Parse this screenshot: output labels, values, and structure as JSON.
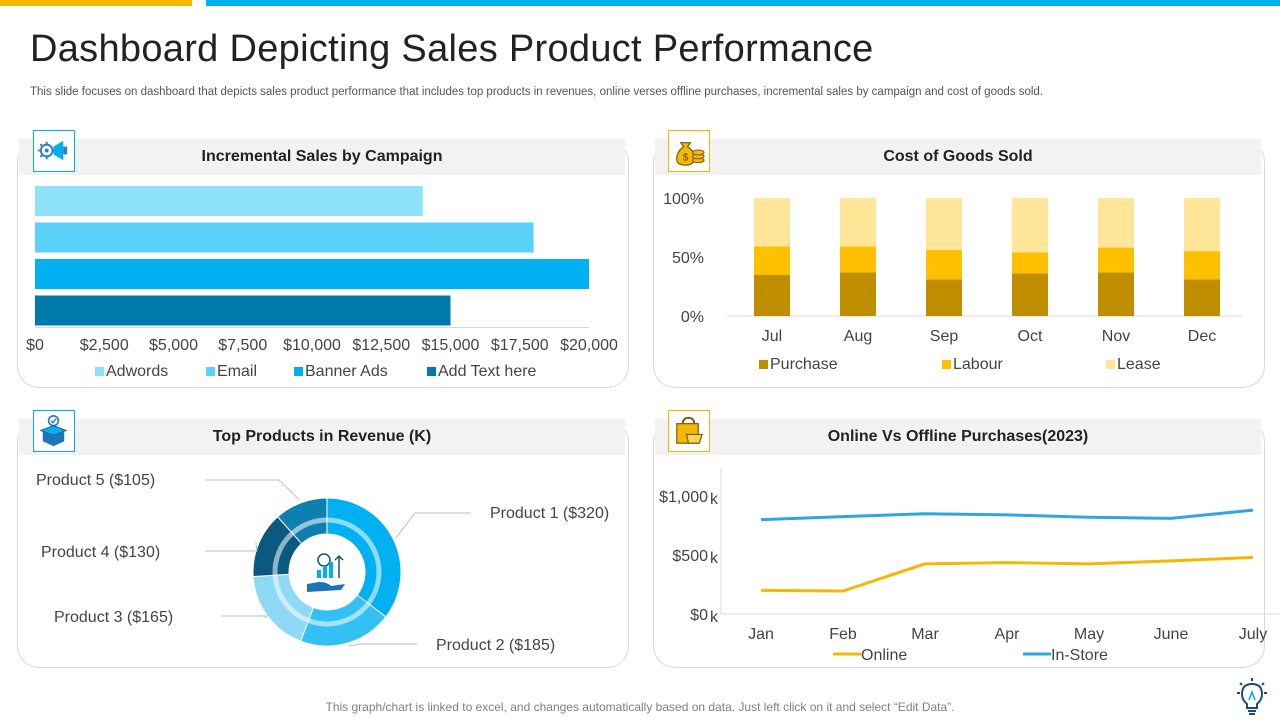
{
  "page": {
    "title": "Dashboard Depicting Sales Product Performance",
    "subtitle": "This slide focuses on dashboard that depicts sales product performance that includes top products in revenues, online verses offline purchases, incremental sales by campaign and cost of goods sold.",
    "footer": "This graph/chart is linked to excel, and changes automatically based on data. Just left click on it and select “Edit Data”.",
    "colors": {
      "accent_blue": "#00b0f0",
      "accent_yellow": "#f5b800"
    }
  },
  "panels": {
    "campaign": {
      "title": "Incremental Sales by Campaign",
      "icon": "megaphone-icon"
    },
    "cogs": {
      "title": "Cost of Goods Sold",
      "icon": "money-bag-icon"
    },
    "products": {
      "title": "Top Products in Revenue (K)",
      "icon": "box-icon"
    },
    "purchases": {
      "title": "Online Vs Offline  Purchases(2023)",
      "icon": "shopping-bag-icon"
    }
  },
  "chart_data": [
    {
      "id": "campaign",
      "type": "bar",
      "orientation": "horizontal",
      "title": "Incremental Sales by Campaign",
      "categories": [
        "Adwords",
        "Email",
        "Banner Ads",
        "Add Text here"
      ],
      "values": [
        14000,
        18000,
        20000,
        15000
      ],
      "colors": [
        "#8fe2fb",
        "#5bd0f8",
        "#00b0f0",
        "#0079ab"
      ],
      "xlim": [
        0,
        20000
      ],
      "ticks": [
        "$0",
        "$2,500",
        "$5,000",
        "$7,500",
        "$10,000",
        "$12,500",
        "$15,000",
        "$17,500",
        "$20,000"
      ],
      "legend": "bottom"
    },
    {
      "id": "cogs",
      "type": "bar",
      "stacked": true,
      "title": "Cost of Goods Sold",
      "categories": [
        "Jul",
        "Aug",
        "Sep",
        "Oct",
        "Nov",
        "Dec"
      ],
      "series": [
        {
          "name": "Purchase",
          "values": [
            35,
            37,
            31,
            36,
            37,
            31
          ],
          "color": "#bf8f00"
        },
        {
          "name": "Labour",
          "values": [
            24,
            22,
            25,
            18,
            21,
            24
          ],
          "color": "#ffc000"
        },
        {
          "name": "Lease",
          "values": [
            41,
            41,
            44,
            46,
            42,
            45
          ],
          "color": "#ffe699"
        }
      ],
      "ylim": [
        0,
        100
      ],
      "yticks": [
        "0%",
        "50%",
        "100%"
      ],
      "legend": "bottom"
    },
    {
      "id": "products",
      "type": "pie",
      "style": "donut",
      "title": "Top Products in Revenue (K)",
      "labels": [
        "Product 1  ($320)",
        "Product 2  ($185)",
        "Product 3  ($165)",
        "Product 4  ($130)",
        "Product 5  ($105)"
      ],
      "values": [
        320,
        185,
        165,
        130,
        105
      ],
      "colors": [
        "#00b0f0",
        "#33c0f3",
        "#8fd9f6",
        "#0a5a80",
        "#0f7fb0"
      ]
    },
    {
      "id": "purchases",
      "type": "line",
      "title": "Online Vs Offline  Purchases(2023)",
      "categories": [
        "Jan",
        "Feb",
        "Mar",
        "Apr",
        "May",
        "June",
        "July"
      ],
      "series": [
        {
          "name": "Online",
          "values": [
            200,
            195,
            425,
            435,
            425,
            450,
            480
          ],
          "color": "#f5b800"
        },
        {
          "name": "In-Store",
          "values": [
            800,
            825,
            850,
            840,
            820,
            810,
            880
          ],
          "color": "#2ea6e0"
        }
      ],
      "ylim": [
        0,
        1000
      ],
      "yticks": [
        "$0",
        "$500",
        "$1,000"
      ],
      "ytick_suffix": "k",
      "legend": "bottom"
    }
  ]
}
